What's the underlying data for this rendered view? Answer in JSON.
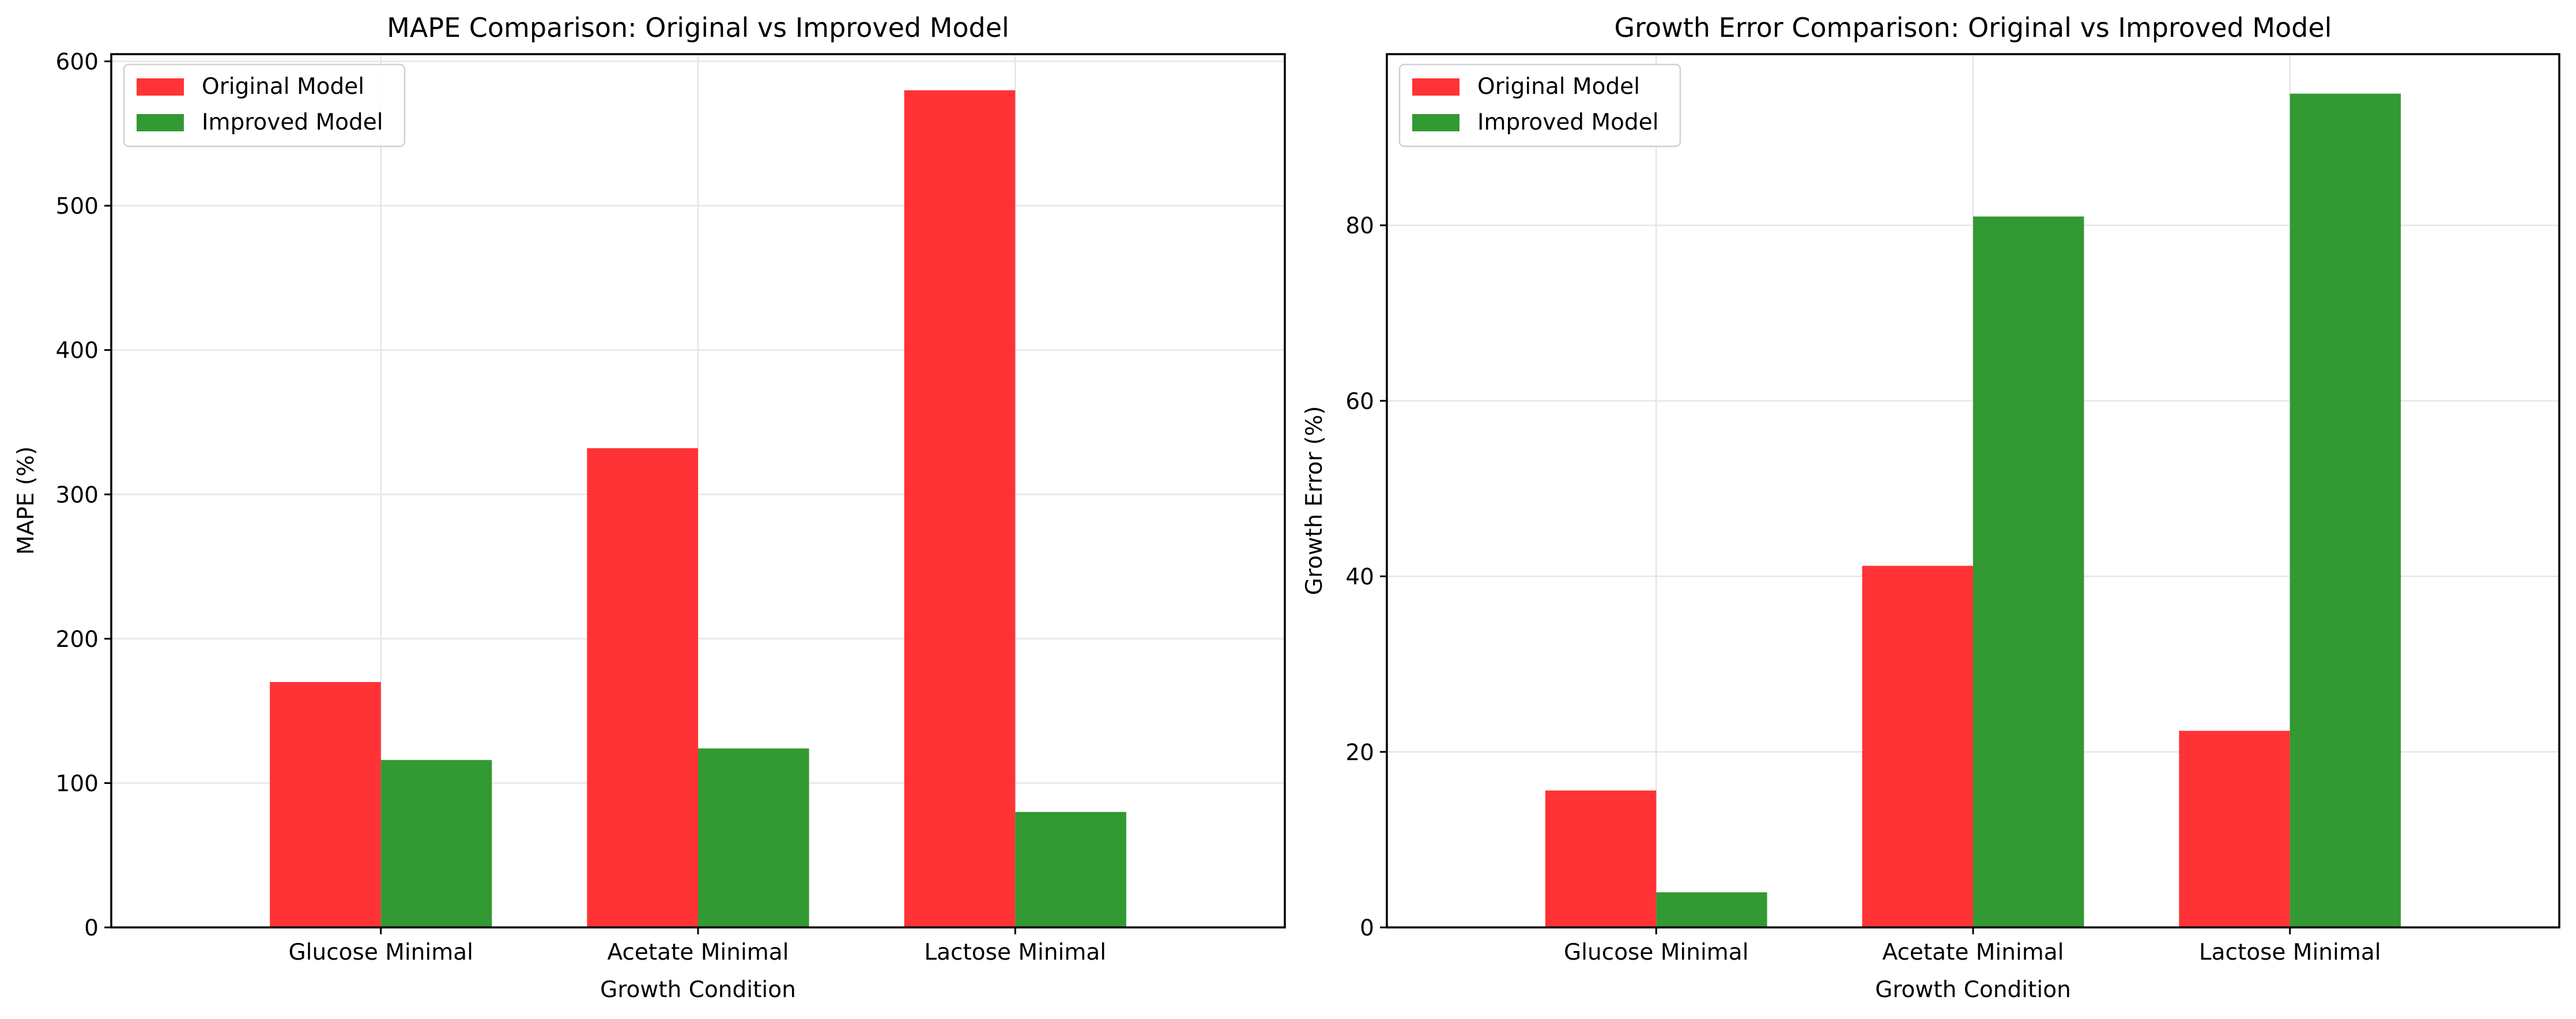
{
  "chart_data": [
    {
      "type": "bar",
      "title": "MAPE Comparison: Original vs Improved Model",
      "xlabel": "Growth Condition",
      "ylabel": "MAPE (%)",
      "categories": [
        "Glucose Minimal",
        "Acetate Minimal",
        "Lactose Minimal"
      ],
      "series": [
        {
          "name": "Original Model",
          "color": "#ff3336",
          "values": [
            170,
            332,
            580
          ]
        },
        {
          "name": "Improved Model",
          "color": "#339933",
          "values": [
            116,
            124,
            80
          ]
        }
      ],
      "ylim": [
        0,
        605
      ],
      "yticks": [
        0,
        100,
        200,
        300,
        400,
        500,
        600
      ],
      "grid": true,
      "legend": "top-left"
    },
    {
      "type": "bar",
      "title": "Growth Error Comparison: Original vs Improved Model",
      "xlabel": "Growth Condition",
      "ylabel": "Growth Error (%)",
      "categories": [
        "Glucose Minimal",
        "Acetate Minimal",
        "Lactose Minimal"
      ],
      "series": [
        {
          "name": "Original Model",
          "color": "#ff3336",
          "values": [
            15.6,
            41.2,
            22.4
          ]
        },
        {
          "name": "Improved Model",
          "color": "#339933",
          "values": [
            4.0,
            81.0,
            95.0
          ]
        }
      ],
      "ylim": [
        0,
        99.5
      ],
      "yticks": [
        0,
        20,
        40,
        60,
        80
      ],
      "grid": true,
      "legend": "top-left"
    }
  ]
}
